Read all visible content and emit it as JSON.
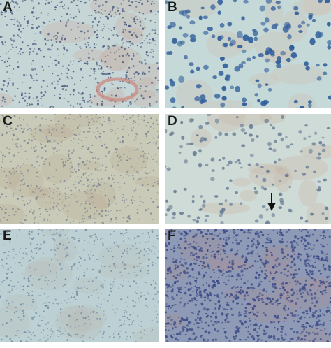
{
  "panels": [
    {
      "label": "A"
    },
    {
      "label": "B"
    },
    {
      "label": "C"
    },
    {
      "label": "D"
    },
    {
      "label": "E"
    },
    {
      "label": "F"
    }
  ]
}
